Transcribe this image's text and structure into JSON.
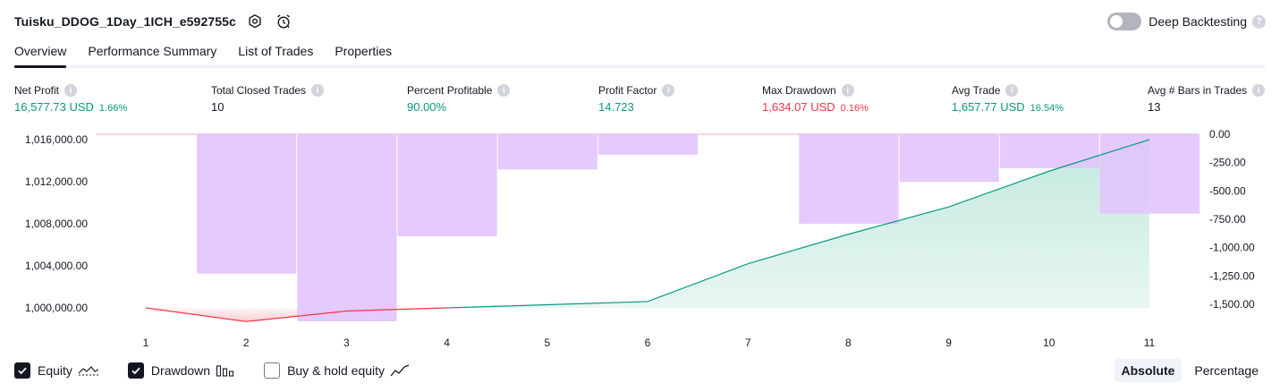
{
  "header": {
    "title": "Tuisku_DDOG_1Day_1ICH_e592755c",
    "deep_backtesting_label": "Deep Backtesting",
    "deep_backtesting_enabled": false
  },
  "tabs": [
    {
      "label": "Overview",
      "active": true
    },
    {
      "label": "Performance Summary",
      "active": false
    },
    {
      "label": "List of Trades",
      "active": false
    },
    {
      "label": "Properties",
      "active": false
    }
  ],
  "metrics": [
    {
      "label": "Net Profit",
      "value": "16,577.73 USD",
      "pct": "1.66%",
      "tone": "pos"
    },
    {
      "label": "Total Closed Trades",
      "value": "10",
      "pct": "",
      "tone": "neu"
    },
    {
      "label": "Percent Profitable",
      "value": "90.00%",
      "pct": "",
      "tone": "pos"
    },
    {
      "label": "Profit Factor",
      "value": "14.723",
      "pct": "",
      "tone": "pos"
    },
    {
      "label": "Max Drawdown",
      "value": "1,634.07 USD",
      "pct": "0.16%",
      "tone": "neg"
    },
    {
      "label": "Avg Trade",
      "value": "1,657.77 USD",
      "pct": "16.54%",
      "tone": "pos"
    },
    {
      "label": "Avg # Bars in Trades",
      "value": "13",
      "pct": "",
      "tone": "neu"
    }
  ],
  "chart_data": {
    "type": "line",
    "x": [
      1,
      2,
      3,
      4,
      5,
      6,
      7,
      8,
      9,
      10,
      11
    ],
    "equity_series": {
      "values": [
        1000000,
        998700,
        999700,
        1000000,
        1000300,
        1000600,
        1004200,
        1007000,
        1009600,
        1013000,
        1016000
      ]
    },
    "drawdown_series": {
      "values": [
        null,
        -1230,
        -1650,
        -900,
        -310,
        -180,
        null,
        -790,
        -420,
        -300,
        -700
      ],
      "values_second_half": [
        null,
        null,
        null,
        null,
        null,
        null,
        null,
        null,
        null,
        -300,
        -700
      ]
    },
    "left_axis": {
      "ticks": [
        "1,016,000.00",
        "1,012,000.00",
        "1,008,000.00",
        "1,004,000.00",
        "1,000,000.00"
      ],
      "tick_values": [
        1016000,
        1012000,
        1008000,
        1004000,
        1000000
      ]
    },
    "right_axis": {
      "ticks": [
        "0.00",
        "-250.00",
        "-500.00",
        "-750.00",
        "-1,000.00",
        "-1,250.00",
        "-1,500.00"
      ],
      "tick_values": [
        0,
        -250,
        -500,
        -750,
        -1000,
        -1250,
        -1500
      ]
    },
    "x_ticks": [
      "1",
      "2",
      "3",
      "4",
      "5",
      "6",
      "7",
      "8",
      "9",
      "10",
      "11"
    ],
    "colors": {
      "equity_up": "#089981",
      "equity_down": "#f23645",
      "drawdown_fill": "#e1c4fd",
      "equity_area": "#bfe7dc"
    }
  },
  "legend": {
    "items": [
      {
        "label": "Equity",
        "checked": true,
        "icon": "equity-line-icon"
      },
      {
        "label": "Drawdown",
        "checked": true,
        "icon": "drawdown-bars-icon"
      },
      {
        "label": "Buy & hold equity",
        "checked": false,
        "icon": "buy-hold-line-icon"
      }
    ]
  },
  "view_toggle": {
    "absolute_label": "Absolute",
    "percentage_label": "Percentage",
    "selected": "Absolute"
  }
}
